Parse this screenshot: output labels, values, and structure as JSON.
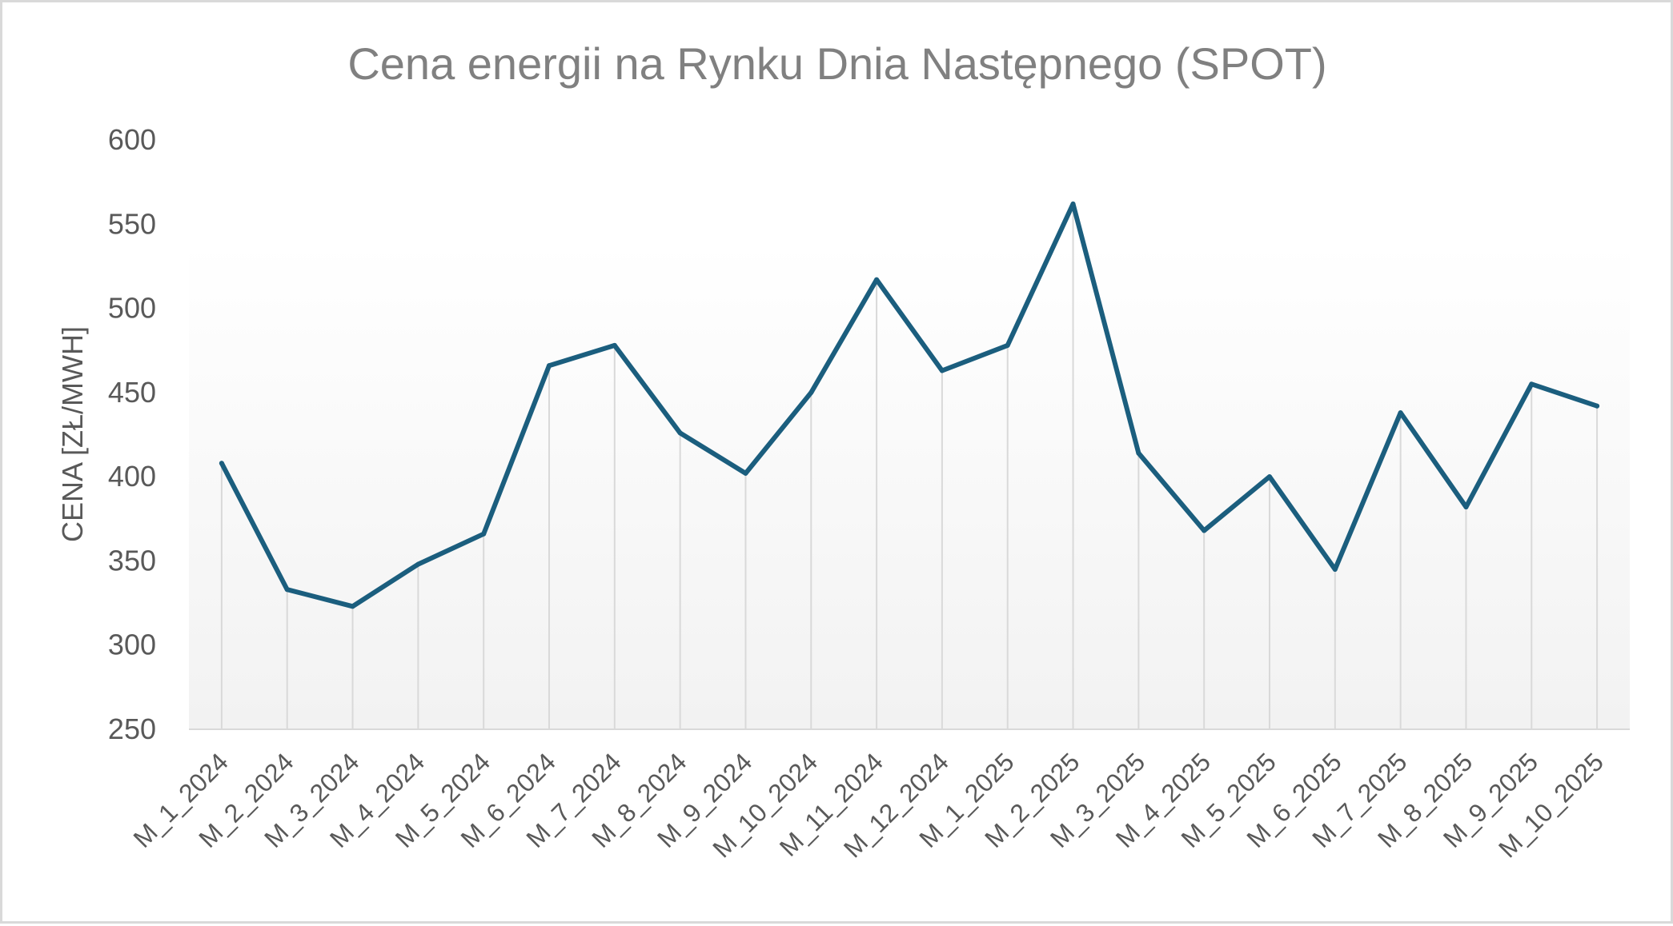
{
  "chart_data": {
    "type": "line",
    "title": "Cena energii na Rynku Dnia Następnego (SPOT)",
    "xlabel": "",
    "ylabel": "CENA [ZŁ/MWH]",
    "ylim": [
      250,
      600
    ],
    "yticks": [
      250,
      300,
      350,
      400,
      450,
      500,
      550,
      600
    ],
    "categories": [
      "M_1_2024",
      "M_2_2024",
      "M_3_2024",
      "M_4_2024",
      "M_5_2024",
      "M_6_2024",
      "M_7_2024",
      "M_8_2024",
      "M_9_2024",
      "M_10_2024",
      "M_11_2024",
      "M_12_2024",
      "M_1_2025",
      "M_2_2025",
      "M_3_2025",
      "M_4_2025",
      "M_5_2025",
      "M_6_2025",
      "M_7_2025",
      "M_8_2025",
      "M_9_2025",
      "M_10_2025"
    ],
    "series": [
      {
        "values": [
          408,
          333,
          323,
          348,
          366,
          466,
          478,
          426,
          402,
          450,
          517,
          463,
          478,
          562,
          414,
          368,
          400,
          345,
          438,
          382,
          455,
          442
        ]
      }
    ],
    "drop_lines": true,
    "grid": false,
    "legend": "none",
    "colors": {
      "line": "#1b5e7e",
      "drop_line": "#d9d9d9",
      "axis": "#d9d9d9",
      "plot_bg_top": "#ffffff",
      "plot_bg_bottom": "#f2f2f2"
    }
  }
}
